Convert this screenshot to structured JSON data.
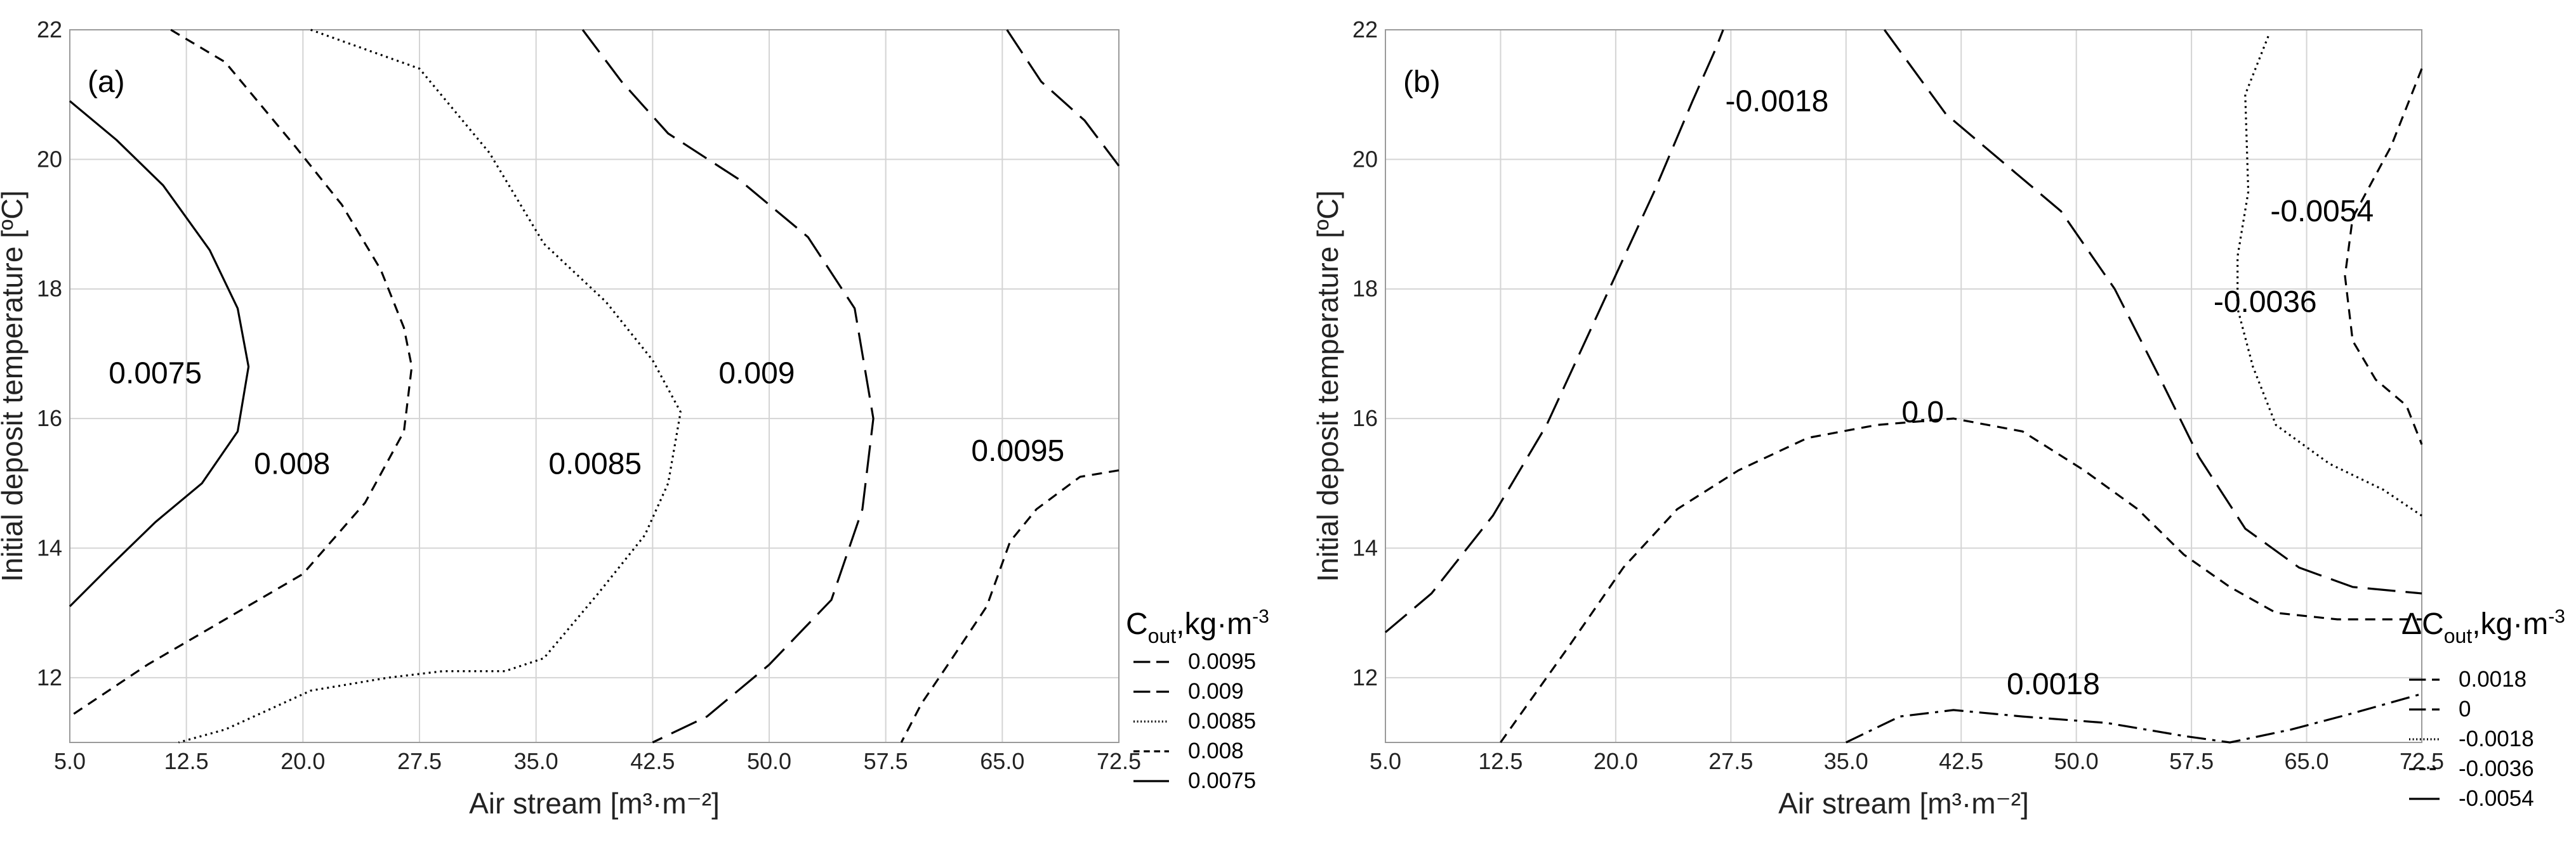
{
  "chart_data": [
    {
      "type": "contour",
      "panel_label": "(a)",
      "xlabel": "Air stream [m³·m⁻²]",
      "ylabel": "Initial deposit temperature [ºC]",
      "xlim": [
        5.0,
        72.5
      ],
      "ylim": [
        11,
        22
      ],
      "xticks": [
        "5.0",
        "12.5",
        "20.0",
        "27.5",
        "35.0",
        "42.5",
        "50.0",
        "57.5",
        "65.0",
        "72.5"
      ],
      "yticks": [
        "12",
        "14",
        "16",
        "18",
        "20",
        "22"
      ],
      "legend": {
        "title_main": "C",
        "title_sub": "out",
        "title_rest": ",kg·m",
        "title_sup": "-3",
        "entries": [
          {
            "label": "0.0095",
            "dash": "long"
          },
          {
            "label": "0.009",
            "dash": "long"
          },
          {
            "label": "0.0085",
            "dash": "dot"
          },
          {
            "label": "0.008",
            "dash": "short"
          },
          {
            "label": "0.0075",
            "dash": "solid"
          }
        ]
      },
      "contours": [
        {
          "level": "0.0075",
          "label": "0.0075",
          "label_pos": [
            10.5,
            16.7
          ],
          "dash": "solid",
          "points": [
            [
              5,
              20.9
            ],
            [
              8,
              20.3
            ],
            [
              11,
              19.6
            ],
            [
              14,
              18.6
            ],
            [
              15.8,
              17.7
            ],
            [
              16.5,
              16.8
            ],
            [
              15.8,
              15.8
            ],
            [
              13.5,
              15.0
            ],
            [
              10.5,
              14.4
            ],
            [
              7.5,
              13.7
            ],
            [
              5,
              13.1
            ]
          ]
        },
        {
          "level": "0.008",
          "label": "0.008",
          "label_pos": [
            19.3,
            15.3
          ],
          "dash": "short",
          "points": [
            [
              11.5,
              22
            ],
            [
              15,
              21.5
            ],
            [
              19.5,
              20.2
            ],
            [
              22.5,
              19.3
            ],
            [
              25,
              18.3
            ],
            [
              26.5,
              17.4
            ],
            [
              27,
              16.8
            ],
            [
              26.5,
              15.8
            ],
            [
              24,
              14.7
            ],
            [
              20,
              13.6
            ],
            [
              15,
              12.9
            ],
            [
              10,
              12.2
            ],
            [
              5,
              11.4
            ]
          ]
        },
        {
          "level": "0.0085",
          "label": "0.0085",
          "label_pos": [
            38.8,
            15.3
          ],
          "dash": "dot",
          "points": [
            [
              20.5,
              22
            ],
            [
              27.5,
              21.4
            ],
            [
              32,
              20.1
            ],
            [
              35.5,
              18.7
            ],
            [
              39.5,
              17.8
            ],
            [
              42.5,
              16.9
            ],
            [
              44.3,
              16.1
            ],
            [
              43.5,
              15.0
            ],
            [
              42,
              14.2
            ],
            [
              39,
              13.3
            ],
            [
              35.5,
              12.3
            ],
            [
              33,
              12.1
            ],
            [
              29,
              12.1
            ],
            [
              25.5,
              12.0
            ],
            [
              20.5,
              11.8
            ],
            [
              15,
              11.2
            ],
            [
              12,
              11.0
            ]
          ]
        },
        {
          "level": "0.009",
          "label": "0.009",
          "label_pos": [
            49.2,
            16.7
          ],
          "dash": "long",
          "points": [
            [
              38,
              22
            ],
            [
              40.5,
              21.2
            ],
            [
              43.5,
              20.4
            ],
            [
              48,
              19.7
            ],
            [
              52.5,
              18.8
            ],
            [
              55.5,
              17.7
            ],
            [
              56.7,
              16.0
            ],
            [
              56,
              14.6
            ],
            [
              54,
              13.2
            ],
            [
              50,
              12.2
            ],
            [
              46,
              11.4
            ],
            [
              42.5,
              11.0
            ]
          ]
        },
        {
          "level": "0.0095",
          "label": "0.0095",
          "label_pos": [
            66.0,
            15.5
          ],
          "dash": "long",
          "points": [
            [
              65.3,
              22
            ],
            [
              67.5,
              21.2
            ],
            [
              70.3,
              20.6
            ],
            [
              72.5,
              19.9
            ]
          ]
        },
        {
          "level": "0.0095",
          "label": "",
          "dash": "short",
          "points": [
            [
              72.5,
              15.2
            ],
            [
              70,
              15.1
            ],
            [
              67.2,
              14.6
            ],
            [
              65.5,
              14.1
            ],
            [
              64,
              13.1
            ],
            [
              61.5,
              12.2
            ],
            [
              59.8,
              11.6
            ],
            [
              58.5,
              11.0
            ]
          ]
        }
      ]
    },
    {
      "type": "contour",
      "panel_label": "(b)",
      "xlabel": "Air stream [m³·m⁻²]",
      "ylabel": "Initial deposit temperature [ºC]",
      "xlim": [
        5.0,
        72.5
      ],
      "ylim": [
        11,
        22
      ],
      "xticks": [
        "5.0",
        "12.5",
        "20.0",
        "27.5",
        "35.0",
        "42.5",
        "50.0",
        "57.5",
        "65.0",
        "72.5"
      ],
      "yticks": [
        "12",
        "14",
        "16",
        "18",
        "20",
        "22"
      ],
      "legend": {
        "title_main": "ΔC",
        "title_sub": "out",
        "title_rest": ",kg·m",
        "title_sup": "-3",
        "entries": [
          {
            "label": "0.0018",
            "dash": "long"
          },
          {
            "label": "0",
            "dash": "long"
          },
          {
            "label": "-0.0018",
            "dash": "dot"
          },
          {
            "label": "-0.0036",
            "dash": "short"
          },
          {
            "label": "-0.0054",
            "dash": "solid"
          }
        ]
      },
      "contours": [
        {
          "level": "-0.0018",
          "label": "-0.0018",
          "label_pos": [
            30.5,
            20.9
          ],
          "dash": "long",
          "points": [
            [
              5,
              12.7
            ],
            [
              8,
              13.3
            ],
            [
              12,
              14.5
            ],
            [
              15.5,
              15.9
            ],
            [
              19,
              17.7
            ],
            [
              22.5,
              19.5
            ],
            [
              25,
              20.9
            ],
            [
              26.5,
              21.7
            ],
            [
              27,
              22
            ]
          ]
        },
        {
          "level": "-0.0036",
          "label": "-0.0036",
          "label_pos": [
            62.3,
            17.8
          ],
          "dash": "long",
          "points": [
            [
              37.5,
              22
            ],
            [
              41.5,
              20.7
            ],
            [
              45,
              20.0
            ],
            [
              49,
              19.2
            ],
            [
              52.5,
              18.0
            ],
            [
              55.5,
              16.6
            ],
            [
              58,
              15.4
            ],
            [
              61,
              14.3
            ],
            [
              64.5,
              13.7
            ],
            [
              68,
              13.4
            ],
            [
              72.5,
              13.3
            ]
          ]
        },
        {
          "level": "-0.0054",
          "label": "-0.0054",
          "label_pos": [
            66.0,
            19.2
          ],
          "dash": "dot",
          "points": [
            [
              62.5,
              21.9
            ],
            [
              61,
              21.0
            ],
            [
              61.2,
              19.5
            ],
            [
              60.5,
              18.5
            ],
            [
              60.5,
              17.7
            ],
            [
              61.5,
              16.8
            ],
            [
              63,
              15.9
            ],
            [
              66.5,
              15.3
            ],
            [
              70,
              14.9
            ],
            [
              72.5,
              14.5
            ]
          ]
        },
        {
          "level": "-0.0054",
          "label": "",
          "dash": "short",
          "points": [
            [
              72.5,
              21.4
            ],
            [
              70.5,
              20.2
            ],
            [
              68,
              19.1
            ],
            [
              67.5,
              18.2
            ],
            [
              68,
              17.2
            ],
            [
              69.5,
              16.6
            ],
            [
              71.5,
              16.2
            ],
            [
              72.5,
              15.6
            ]
          ]
        },
        {
          "level": "0.0",
          "label": "0.0",
          "label_pos": [
            40.0,
            16.1
          ],
          "dash": "short",
          "points": [
            [
              12.5,
              11.0
            ],
            [
              17,
              12.5
            ],
            [
              20.5,
              13.7
            ],
            [
              24,
              14.6
            ],
            [
              28,
              15.2
            ],
            [
              32.5,
              15.7
            ],
            [
              37,
              15.9
            ],
            [
              42,
              16.0
            ],
            [
              46.5,
              15.8
            ],
            [
              50.5,
              15.2
            ],
            [
              54,
              14.6
            ],
            [
              57,
              13.9
            ],
            [
              60,
              13.4
            ],
            [
              63,
              13.0
            ],
            [
              67,
              12.9
            ],
            [
              72.5,
              12.9
            ]
          ]
        },
        {
          "level": "0.0018",
          "label": "0.0018",
          "label_pos": [
            48.5,
            11.9
          ],
          "dash": "dashdot",
          "points": [
            [
              35,
              11.0
            ],
            [
              38.5,
              11.4
            ],
            [
              42,
              11.5
            ],
            [
              46.5,
              11.4
            ],
            [
              52,
              11.3
            ],
            [
              57,
              11.1
            ],
            [
              60,
              11.0
            ],
            [
              64,
              11.2
            ],
            [
              68,
              11.45
            ],
            [
              72.5,
              11.75
            ]
          ]
        }
      ]
    }
  ]
}
